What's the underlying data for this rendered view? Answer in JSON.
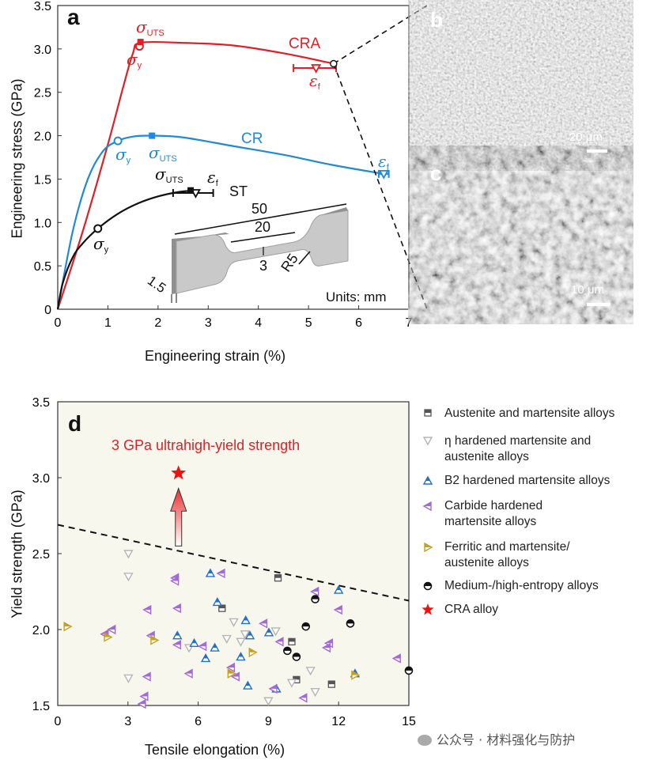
{
  "panel_labels": {
    "a": "a",
    "b": "b",
    "c": "c",
    "d": "d"
  },
  "colors": {
    "CRA": "#e31e24",
    "CR": "#1f8ad6",
    "ST": "#111111",
    "background_d": "#f7f7ee",
    "austenite": "#555555",
    "eta": "#b5b5b5",
    "B2": "#2270c8",
    "carbide": "#a26ad6",
    "ferritic": "#c8a020",
    "entropy": "#111111",
    "star": "#ee1111"
  },
  "chart_data": [
    {
      "type": "line",
      "panel": "a",
      "xlabel": "Engineering strain  (%)",
      "ylabel": "Engineering stress  (GPa)",
      "xlim": [
        0,
        7
      ],
      "ylim": [
        0,
        3.5
      ],
      "xticks": [
        "0",
        "1",
        "2",
        "3",
        "4",
        "5",
        "6",
        "7"
      ],
      "yticks": [
        "0",
        "0.5",
        "1.0",
        "1.5",
        "2.0",
        "2.5",
        "3.0",
        "3.5"
      ],
      "series": [
        {
          "name": "CRA",
          "points": [
            [
              0,
              0
            ],
            [
              0.5,
              0.9
            ],
            [
              1.0,
              1.9
            ],
            [
              1.3,
              2.55
            ],
            [
              1.5,
              2.95
            ],
            [
              1.65,
              3.07
            ],
            [
              2.5,
              3.07
            ],
            [
              3.5,
              3.04
            ],
            [
              4.5,
              2.95
            ],
            [
              5.5,
              2.83
            ]
          ],
          "yield": [
            1.63,
            3.03
          ],
          "uts": [
            1.65,
            3.08
          ],
          "fracture": [
            5.15,
            2.78
          ],
          "fracture_err": [
            4.7,
            5.55
          ]
        },
        {
          "name": "CR",
          "points": [
            [
              0,
              0
            ],
            [
              0.3,
              0.9
            ],
            [
              0.6,
              1.5
            ],
            [
              0.9,
              1.82
            ],
            [
              1.2,
              1.94
            ],
            [
              1.5,
              1.99
            ],
            [
              1.9,
              2.0
            ],
            [
              2.5,
              1.98
            ],
            [
              3.5,
              1.88
            ],
            [
              4.5,
              1.78
            ],
            [
              5.5,
              1.66
            ],
            [
              6.5,
              1.56
            ]
          ],
          "yield": [
            1.2,
            1.94
          ],
          "uts": [
            1.88,
            2.0
          ],
          "fracture": [
            6.5,
            1.56
          ],
          "fracture_err": [
            6.4,
            6.6
          ]
        },
        {
          "name": "ST",
          "points": [
            [
              0,
              0
            ],
            [
              0.1,
              0.3
            ],
            [
              0.3,
              0.6
            ],
            [
              0.5,
              0.76
            ],
            [
              0.8,
              0.93
            ],
            [
              1.2,
              1.1
            ],
            [
              1.6,
              1.22
            ],
            [
              2.0,
              1.3
            ],
            [
              2.4,
              1.35
            ],
            [
              2.75,
              1.37
            ]
          ],
          "yield": [
            0.8,
            0.93
          ],
          "uts": [
            2.65,
            1.37
          ],
          "fracture": [
            2.75,
            1.34
          ],
          "fracture_err": [
            2.3,
            3.1
          ]
        }
      ],
      "annotations": {
        "sigma": "σ",
        "epsilon": "ε",
        "uts": "UTS",
        "y": "y",
        "f": "f",
        "CRA": "CRA",
        "CR": "CR",
        "ST": "ST"
      },
      "inset": {
        "len_total": "50",
        "len_gauge": "20",
        "width": "3",
        "radius": "R5",
        "thickness": "1.5",
        "units": "Units: mm"
      }
    },
    {
      "type": "scatter",
      "panel": "d",
      "xlabel": "Tensile elongation (%)",
      "ylabel": "Yield strength (GPa)",
      "xlim": [
        0,
        15
      ],
      "ylim": [
        1.5,
        3.5
      ],
      "xticks": [
        "0",
        "3",
        "6",
        "9",
        "12",
        "15"
      ],
      "yticks": [
        "1.5",
        "2.0",
        "2.5",
        "3.0",
        "3.5"
      ],
      "annotation": "3 GPa ultrahigh-yield strength",
      "boundary_line": [
        [
          0,
          2.69
        ],
        [
          15,
          2.19
        ]
      ],
      "series": [
        {
          "name": "Austenite and martensite alloys",
          "marker": "square",
          "points": [
            [
              9.41,
              2.34
            ],
            [
              7.02,
              2.14
            ],
            [
              10.0,
              1.92
            ],
            [
              10.2,
              1.67
            ],
            [
              11.7,
              1.64
            ]
          ]
        },
        {
          "name": "η hardened martensite and austenite alloys",
          "marker": "down-triangle",
          "points": [
            [
              3.02,
              2.5
            ],
            [
              3.02,
              2.35
            ],
            [
              3.02,
              1.68
            ],
            [
              5.61,
              1.88
            ],
            [
              7.52,
              2.05
            ],
            [
              7.22,
              1.94
            ],
            [
              7.82,
              1.92
            ],
            [
              8.0,
              1.97
            ],
            [
              9.31,
              1.99
            ],
            [
              9.0,
              1.53
            ],
            [
              10.0,
              1.65
            ],
            [
              10.8,
              1.73
            ],
            [
              11.0,
              1.59
            ]
          ]
        },
        {
          "name": "B2 hardened martensite alloys",
          "marker": "up-triangle",
          "points": [
            [
              6.52,
              2.37
            ],
            [
              6.82,
              2.18
            ],
            [
              5.11,
              1.96
            ],
            [
              5.83,
              1.91
            ],
            [
              8.03,
              2.06
            ],
            [
              8.21,
              1.96
            ],
            [
              9.02,
              1.98
            ],
            [
              6.71,
              1.88
            ],
            [
              6.32,
              1.81
            ],
            [
              7.82,
              1.82
            ],
            [
              8.12,
              1.63
            ],
            [
              9.34,
              1.61
            ],
            [
              12.0,
              2.26
            ],
            [
              12.7,
              1.71
            ]
          ]
        },
        {
          "name": "Carbide hardened martensite alloys",
          "marker": "left-triangle",
          "points": [
            [
              5.02,
              2.34
            ],
            [
              5.02,
              2.32
            ],
            [
              6.99,
              2.37
            ],
            [
              3.84,
              2.13
            ],
            [
              5.11,
              2.14
            ],
            [
              2.02,
              1.97
            ],
            [
              2.32,
              2.0
            ],
            [
              3.99,
              1.96
            ],
            [
              5.11,
              1.9
            ],
            [
              6.2,
              1.89
            ],
            [
              8.8,
              2.04
            ],
            [
              9.49,
              1.92
            ],
            [
              11.0,
              2.25
            ],
            [
              12.0,
              2.13
            ],
            [
              11.6,
              1.91
            ],
            [
              11.5,
              1.88
            ],
            [
              14.5,
              1.81
            ],
            [
              3.82,
              1.69
            ],
            [
              5.61,
              1.71
            ],
            [
              7.41,
              1.75
            ],
            [
              7.61,
              1.69
            ],
            [
              9.22,
              1.61
            ],
            [
              10.5,
              1.55
            ],
            [
              3.71,
              1.56
            ],
            [
              3.61,
              1.51
            ]
          ]
        },
        {
          "name": "Ferritic and martensite/ austenite  alloys",
          "marker": "right-triangle",
          "points": [
            [
              0.41,
              2.02
            ],
            [
              2.13,
              1.95
            ],
            [
              4.12,
              1.93
            ],
            [
              8.32,
              1.85
            ],
            [
              7.41,
              1.71
            ],
            [
              12.7,
              1.7
            ]
          ]
        },
        {
          "name": "Medium-/high-entropy alloys",
          "marker": "pentagon",
          "points": [
            [
              11.0,
              2.2
            ],
            [
              10.6,
              2.02
            ],
            [
              12.5,
              2.04
            ],
            [
              9.81,
              1.86
            ],
            [
              10.2,
              1.82
            ],
            [
              15.0,
              1.73
            ]
          ]
        },
        {
          "name": "CRA alloy",
          "marker": "star",
          "points": [
            [
              5.16,
              3.03
            ]
          ]
        }
      ],
      "legend": {
        "placement": "right",
        "items": [
          {
            "lines": [
              "Austenite and martensite alloys"
            ]
          },
          {
            "lines": [
              "η hardened martensite and",
              "austenite alloys"
            ]
          },
          {
            "lines": [
              "B2 hardened martensite alloys"
            ]
          },
          {
            "lines": [
              "Carbide hardened",
              "martensite alloys"
            ]
          },
          {
            "lines": [
              "Ferritic and martensite/",
              "austenite  alloys"
            ]
          },
          {
            "lines": [
              "Medium-/high-entropy alloys"
            ]
          },
          {
            "lines": [
              "CRA alloy"
            ]
          }
        ]
      }
    }
  ],
  "sem": {
    "b_scale": "20 μm",
    "c_scale": "10 μm"
  },
  "watermark": "公众号 · 材料强化与防护"
}
